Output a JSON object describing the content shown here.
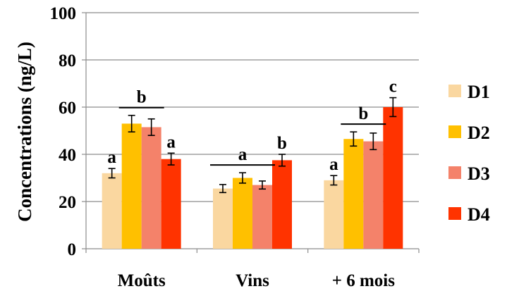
{
  "chart_data": {
    "type": "bar",
    "title": "",
    "xlabel": "",
    "ylabel": "Concentrations (ng/L)",
    "ylim": [
      0,
      100
    ],
    "yticks": [
      0,
      20,
      40,
      60,
      80,
      100
    ],
    "grid": true,
    "legend_position": "right",
    "categories": [
      "Moûts",
      "Vins",
      "+ 6 mois"
    ],
    "series": [
      {
        "name": "D1",
        "color": "#FAD7A0",
        "values": [
          32,
          25.5,
          29
        ],
        "errors": [
          2,
          1.7,
          2
        ]
      },
      {
        "name": "D2",
        "color": "#FFC000",
        "values": [
          53,
          30,
          46.5
        ],
        "errors": [
          3.5,
          2.2,
          3
        ]
      },
      {
        "name": "D3",
        "color": "#F4826A",
        "values": [
          51.5,
          27,
          45.5
        ],
        "errors": [
          3.5,
          1.7,
          3.5
        ]
      },
      {
        "name": "D4",
        "color": "#FF3300",
        "values": [
          38,
          37.5,
          60
        ],
        "errors": [
          2.5,
          2.5,
          4
        ]
      }
    ],
    "annotations": [
      {
        "group": 0,
        "series": [
          0
        ],
        "label": "a"
      },
      {
        "group": 0,
        "series": [
          1,
          2
        ],
        "label": "b"
      },
      {
        "group": 0,
        "series": [
          3
        ],
        "label": "a"
      },
      {
        "group": 1,
        "series": [
          0,
          1,
          2
        ],
        "label": "a"
      },
      {
        "group": 1,
        "series": [
          3
        ],
        "label": "b"
      },
      {
        "group": 2,
        "series": [
          0
        ],
        "label": "a"
      },
      {
        "group": 2,
        "series": [
          1,
          2
        ],
        "label": "b"
      },
      {
        "group": 2,
        "series": [
          3
        ],
        "label": "c"
      }
    ]
  }
}
